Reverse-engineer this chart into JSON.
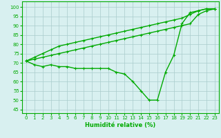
{
  "x": [
    0,
    1,
    2,
    3,
    4,
    5,
    6,
    7,
    8,
    9,
    10,
    11,
    12,
    13,
    14,
    15,
    16,
    17,
    18,
    19,
    20,
    21,
    22,
    23
  ],
  "line1": [
    71,
    69,
    68,
    69,
    68,
    68,
    67,
    67,
    67,
    67,
    67,
    65,
    64,
    60,
    55,
    50,
    50,
    65,
    74,
    91,
    97,
    98,
    99,
    99
  ],
  "line2": [
    71,
    72,
    73,
    74,
    75,
    76,
    77,
    78,
    79,
    80,
    81,
    82,
    83,
    84,
    85,
    86,
    87,
    88,
    89,
    90,
    91,
    96,
    98,
    99
  ],
  "line3": [
    71,
    73,
    75,
    77,
    79,
    80,
    81,
    82,
    83,
    84,
    85,
    86,
    87,
    88,
    89,
    90,
    91,
    92,
    93,
    94,
    96,
    98,
    99,
    99
  ],
  "line_color": "#00aa00",
  "bg_color": "#d8f0f0",
  "grid_color": "#aacccc",
  "xlabel": "Humidité relative (%)",
  "ylim": [
    43,
    103
  ],
  "xlim": [
    -0.5,
    23.5
  ],
  "yticks": [
    45,
    50,
    55,
    60,
    65,
    70,
    75,
    80,
    85,
    90,
    95,
    100
  ],
  "xticks": [
    0,
    1,
    2,
    3,
    4,
    5,
    6,
    7,
    8,
    9,
    10,
    11,
    12,
    13,
    14,
    15,
    16,
    17,
    18,
    19,
    20,
    21,
    22,
    23
  ],
  "marker": "+",
  "markersize": 3,
  "linewidth": 1.0,
  "tick_fontsize": 5.0,
  "xlabel_fontsize": 6.0
}
